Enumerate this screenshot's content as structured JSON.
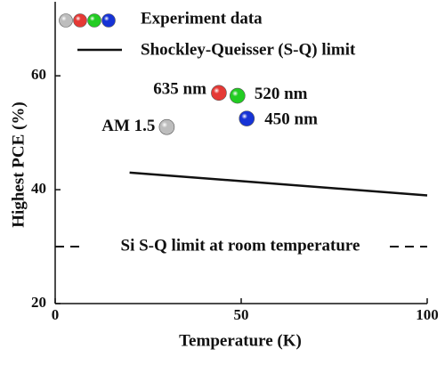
{
  "chart_data": {
    "type": "scatter",
    "title": "",
    "xlabel": "Temperature (K)",
    "ylabel": "Highest PCE (%)",
    "xlim": [
      0,
      100
    ],
    "ylim": [
      20,
      73
    ],
    "xticks": [
      0,
      50,
      100
    ],
    "yticks": [
      20,
      40,
      60
    ],
    "grid": false,
    "legend_placement": "top-left",
    "legend": [
      {
        "label": "Experiment data",
        "type": "marker-group",
        "colors": [
          "#bdbdbd",
          "#e53935",
          "#22cc22",
          "#1633d6"
        ]
      },
      {
        "label": "Shockley-Queisser (S-Q) limit",
        "type": "line",
        "color": "#111111"
      }
    ],
    "series": [
      {
        "name": "Experiment data",
        "points": [
          {
            "x": 30,
            "y": 51,
            "label": "AM 1.5",
            "color": "#bdbdbd"
          },
          {
            "x": 44,
            "y": 57,
            "label": "635 nm",
            "color": "#e53935"
          },
          {
            "x": 49,
            "y": 56.5,
            "label": "520 nm",
            "color": "#22cc22"
          },
          {
            "x": 51.5,
            "y": 52.5,
            "label": "450 nm",
            "color": "#1633d6"
          }
        ]
      },
      {
        "name": "Shockley-Queisser (S-Q) limit",
        "type": "line",
        "color": "#111111",
        "points": [
          {
            "x": 20,
            "y": 43
          },
          {
            "x": 100,
            "y": 39
          }
        ]
      }
    ],
    "reference_line": {
      "label": "Si S-Q limit at room temperature",
      "y": 30,
      "style": "dashed",
      "color": "#111111"
    }
  }
}
